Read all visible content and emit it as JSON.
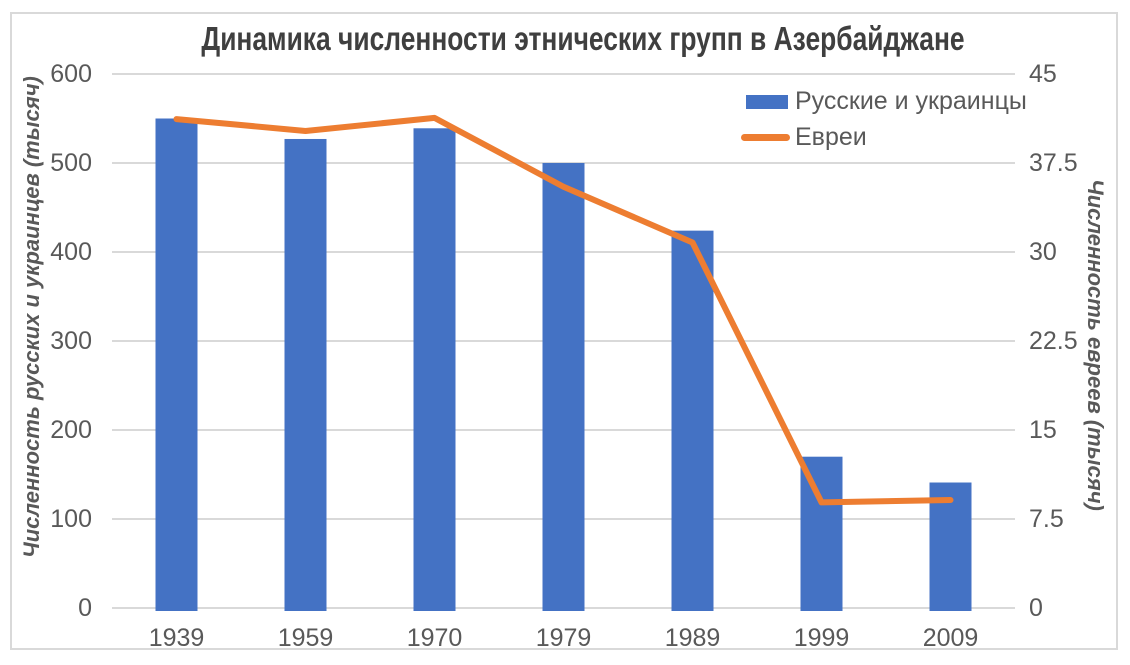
{
  "figure": {
    "title": "Динамика численности этнических групп в Азербайджане"
  },
  "legend": {
    "items": [
      {
        "label": "Русские и украинцы",
        "marker": "bar-swatch",
        "color": "#4472C4"
      },
      {
        "label": "Евреи",
        "marker": "line-swatch",
        "color": "#ED7D31"
      }
    ]
  },
  "chart_data": {
    "type": "bar",
    "subtype": "combo-bar-line-dual-axis",
    "title": "Динамика численности этнических групп в Азербайджане",
    "categories": [
      "1939",
      "1959",
      "1970",
      "1979",
      "1989",
      "1999",
      "2009"
    ],
    "series": [
      {
        "name": "Русские и украинцы",
        "type": "bar",
        "axis": "left",
        "color": "#4472C4",
        "values": [
          550,
          527,
          539,
          500,
          424,
          170,
          141
        ]
      },
      {
        "name": "Евреи",
        "type": "line",
        "axis": "right",
        "color": "#ED7D31",
        "values": [
          41.2,
          40.2,
          41.3,
          35.5,
          30.8,
          8.9,
          9.1
        ]
      }
    ],
    "left_axis": {
      "label": "Численность русских и украинцев (тысяч)",
      "min": 0,
      "max": 600,
      "ticks": [
        0,
        100,
        200,
        300,
        400,
        500,
        600
      ]
    },
    "right_axis": {
      "label": "Численность евреев (тысяч)",
      "min": 0,
      "max": 45,
      "ticks": [
        0,
        7.5,
        15,
        22.5,
        30,
        37.5,
        45
      ]
    },
    "xlabel": "",
    "grid": true,
    "legend_position": "top-right-inside",
    "colors": {
      "bar": "#4472C4",
      "line": "#ED7D31",
      "gridline": "#D9D9D9",
      "frame": "#D9D9D9",
      "tick_text": "#595959",
      "title_text": "#3f3f3f"
    }
  }
}
